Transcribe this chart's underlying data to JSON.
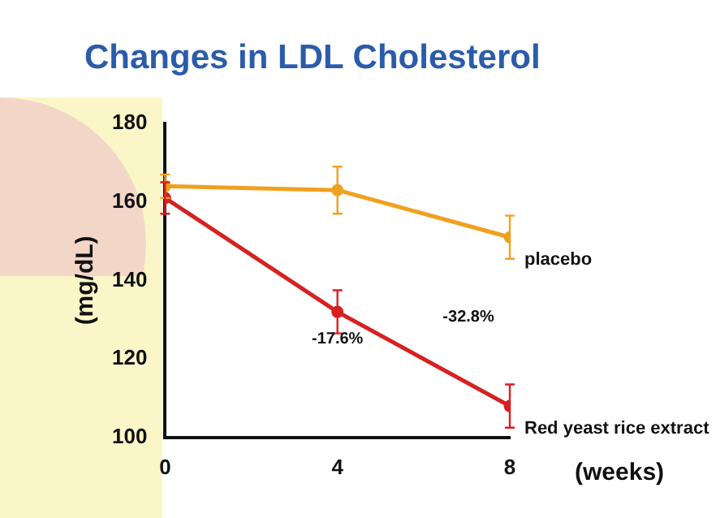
{
  "chart_data": {
    "type": "line",
    "title": "Changes in LDL Cholesterol",
    "xlabel": "(weeks)",
    "ylabel": "(mg/dL)",
    "x": [
      0,
      4,
      8
    ],
    "series": [
      {
        "name": "placebo",
        "color": "#f0a020",
        "values": [
          164,
          163,
          151
        ],
        "errors": [
          3,
          6,
          5.5
        ]
      },
      {
        "name": "Red yeast rice extract",
        "color": "#d82020",
        "values": [
          161,
          132,
          108
        ],
        "errors": [
          4,
          5.5,
          5.5
        ]
      }
    ],
    "xlim": [
      0,
      8
    ],
    "xticks": [
      0,
      4,
      8
    ],
    "ylim": [
      100,
      180
    ],
    "yticks": [
      100,
      120,
      140,
      160,
      180
    ],
    "grid": false,
    "legend": false,
    "marker": "circle",
    "line_style": "solid",
    "annotations": [
      "-17.6%",
      "-32.8%"
    ]
  }
}
